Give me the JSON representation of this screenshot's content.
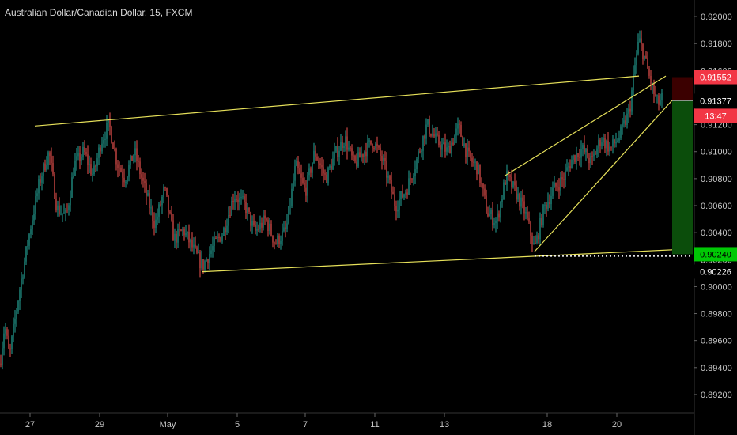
{
  "header": {
    "title": "Australian Dollar/Canadian Dollar, 15, FXCM"
  },
  "colors": {
    "background": "#000000",
    "axis_text": "#c8c8c8",
    "up_candle": "#26a69a",
    "down_candle": "#ef5350",
    "trendline": "#e6e05a",
    "stop_label": "#f23645",
    "price_label": "#f23645",
    "target_label": "#00c805",
    "risk_box": "#3b0000",
    "reward_box": "#0b4d0b",
    "dotted_line": "#ffffff"
  },
  "chart_data": {
    "type": "candlestick",
    "title": "Australian Dollar/Canadian Dollar, 15, FXCM",
    "symbol": "AUDCAD",
    "interval": "15",
    "source": "FXCM",
    "ylim": [
      0.891,
      0.921
    ],
    "y_ticks": [
      "0.92000",
      "0.91800",
      "0.91600",
      "0.91400",
      "0.91200",
      "0.91000",
      "0.90800",
      "0.90600",
      "0.90400",
      "0.90200",
      "0.90000",
      "0.89800",
      "0.89600",
      "0.89400",
      "0.89200"
    ],
    "x_ticks": [
      "27",
      "29",
      "May",
      "5",
      "7",
      "11",
      "13",
      "18",
      "20"
    ],
    "x_tick_index": [
      0,
      1,
      2,
      3,
      4,
      5,
      6,
      7,
      8
    ],
    "price_path": [
      [
        0,
        0.8943
      ],
      [
        6,
        0.8972
      ],
      [
        12,
        0.8948
      ],
      [
        24,
        0.8995
      ],
      [
        38,
        0.9042
      ],
      [
        50,
        0.9078
      ],
      [
        62,
        0.91
      ],
      [
        72,
        0.9058
      ],
      [
        84,
        0.9052
      ],
      [
        94,
        0.909
      ],
      [
        106,
        0.91
      ],
      [
        118,
        0.9082
      ],
      [
        128,
        0.9108
      ],
      [
        138,
        0.912
      ],
      [
        148,
        0.9092
      ],
      [
        158,
        0.908
      ],
      [
        170,
        0.91
      ],
      [
        184,
        0.907
      ],
      [
        196,
        0.9046
      ],
      [
        208,
        0.9072
      ],
      [
        220,
        0.9035
      ],
      [
        232,
        0.9042
      ],
      [
        244,
        0.9028
      ],
      [
        256,
        0.9015
      ],
      [
        270,
        0.903
      ],
      [
        282,
        0.904
      ],
      [
        296,
        0.9068
      ],
      [
        310,
        0.906
      ],
      [
        322,
        0.904
      ],
      [
        336,
        0.905
      ],
      [
        348,
        0.9032
      ],
      [
        362,
        0.9042
      ],
      [
        374,
        0.909
      ],
      [
        386,
        0.907
      ],
      [
        398,
        0.91
      ],
      [
        412,
        0.908
      ],
      [
        424,
        0.9098
      ],
      [
        436,
        0.911
      ],
      [
        448,
        0.909
      ],
      [
        460,
        0.91
      ],
      [
        472,
        0.9108
      ],
      [
        486,
        0.909
      ],
      [
        500,
        0.906
      ],
      [
        514,
        0.9072
      ],
      [
        526,
        0.9092
      ],
      [
        540,
        0.912
      ],
      [
        552,
        0.9108
      ],
      [
        566,
        0.91
      ],
      [
        580,
        0.9118
      ],
      [
        592,
        0.9096
      ],
      [
        604,
        0.9088
      ],
      [
        616,
        0.9055
      ],
      [
        628,
        0.9048
      ],
      [
        640,
        0.9082
      ],
      [
        652,
        0.907
      ],
      [
        664,
        0.9055
      ],
      [
        676,
        0.9028
      ],
      [
        688,
        0.9058
      ],
      [
        700,
        0.9072
      ],
      [
        712,
        0.908
      ],
      [
        724,
        0.9095
      ],
      [
        736,
        0.9102
      ],
      [
        748,
        0.9092
      ],
      [
        760,
        0.911
      ],
      [
        772,
        0.9102
      ],
      [
        784,
        0.9112
      ],
      [
        796,
        0.913
      ],
      [
        804,
        0.9168
      ],
      [
        808,
        0.9183
      ],
      [
        816,
        0.9168
      ],
      [
        824,
        0.9148
      ],
      [
        832,
        0.9135
      ],
      [
        838,
        0.914
      ]
    ],
    "trendlines": [
      {
        "name": "channel-top",
        "points": [
          [
            44,
            0.9119
          ],
          [
            808,
            0.9156
          ]
        ]
      },
      {
        "name": "channel-bottom",
        "points": [
          [
            256,
            0.9011
          ],
          [
            876,
            0.9028
          ]
        ]
      },
      {
        "name": "rising-channel-upper",
        "points": [
          [
            638,
            0.9082
          ],
          [
            842,
            0.9156
          ]
        ]
      },
      {
        "name": "rising-channel-lower",
        "points": [
          [
            676,
            0.9026
          ],
          [
            850,
            0.9138
          ]
        ]
      }
    ],
    "position": {
      "entry": 0.91377,
      "stop": 0.91552,
      "target": 0.9024,
      "start_x": 850,
      "end_x": 876
    },
    "price_labels": [
      {
        "value": "0.91552",
        "kind": "stop"
      },
      {
        "value": "0.91377",
        "kind": "plain"
      },
      {
        "value": "13:47",
        "kind": "countdown"
      },
      {
        "value": "0.90240",
        "kind": "target"
      },
      {
        "value": "0.90226",
        "kind": "plain"
      }
    ],
    "dotted_level": 0.90226
  }
}
